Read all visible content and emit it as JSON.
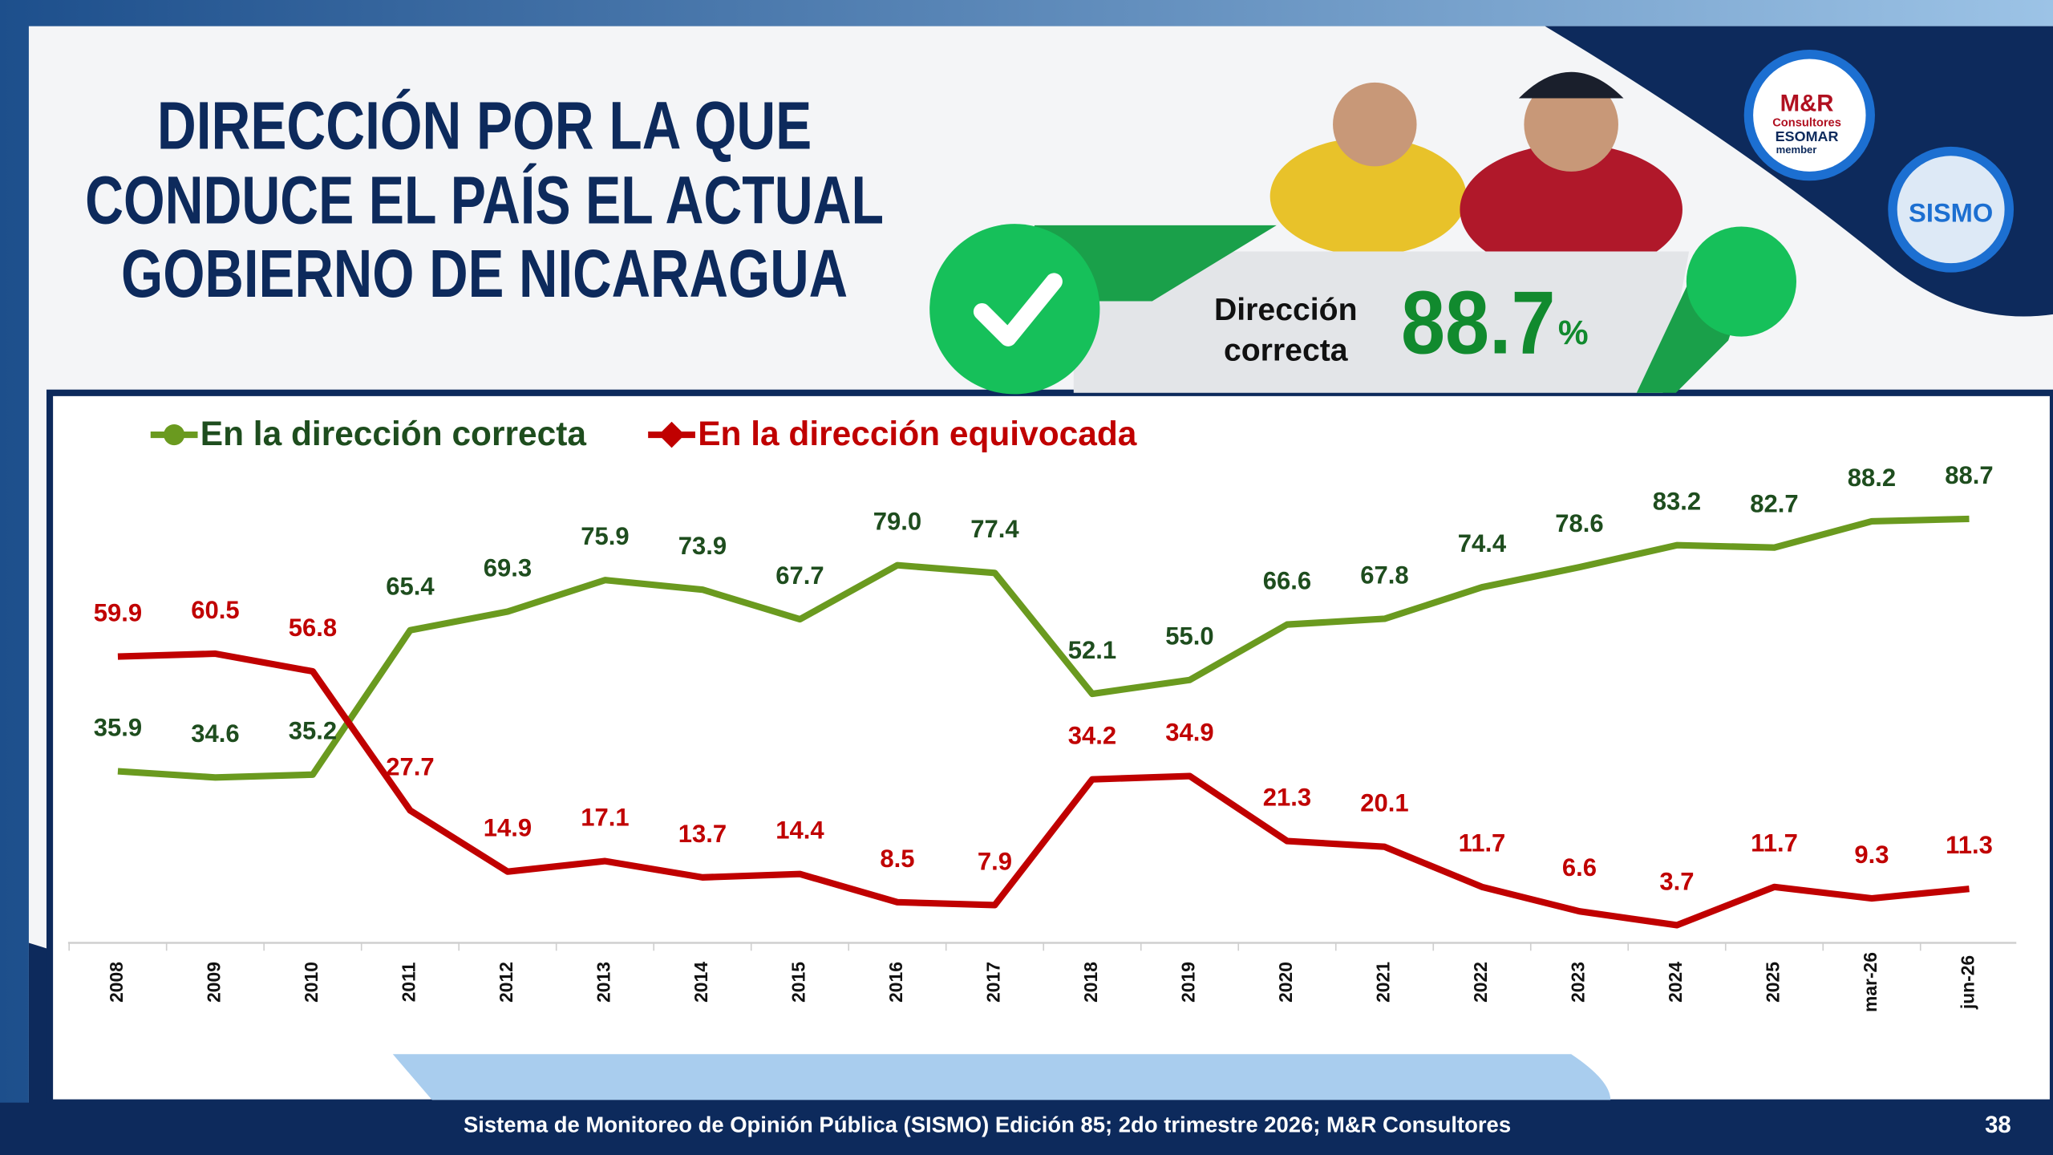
{
  "header": {
    "title_lines": [
      "DIRECCIÓN POR LA QUE",
      "CONDUCE EL PAÍS EL ACTUAL",
      "GOBIERNO DE NICARAGUA"
    ]
  },
  "badge": {
    "label_lines": [
      "Dirección",
      "correcta"
    ],
    "value": 88.7,
    "unit": "%"
  },
  "logos": {
    "mr": [
      "M&R",
      "Consultores",
      "ESOMAR",
      "member"
    ],
    "sismo": "SISMO"
  },
  "footer": {
    "text": "Sistema de Monitoreo de Opinión Pública (SISMO) Edición 85; 2do trimestre 2026; M&R Consultores",
    "page": "38"
  },
  "chart_data": {
    "type": "line",
    "categories": [
      "2008",
      "2009",
      "2010",
      "2011",
      "2012",
      "2013",
      "2014",
      "2015",
      "2016",
      "2017",
      "2018",
      "2019",
      "2020",
      "2021",
      "2022",
      "2023",
      "2024",
      "2025",
      "mar-26",
      "jun-26"
    ],
    "ylim": [
      0,
      100
    ],
    "series": [
      {
        "name": "En la dirección correcta",
        "color": "#6a9a1f",
        "label_color": "#1e4d1e",
        "values": [
          35.9,
          34.6,
          35.2,
          65.4,
          69.3,
          75.9,
          73.9,
          67.7,
          79.0,
          77.4,
          52.1,
          55.0,
          66.6,
          67.8,
          74.4,
          78.6,
          83.2,
          82.7,
          88.2,
          88.7
        ],
        "value_labels": [
          "35.9",
          "34.6",
          "35.2",
          "65.4",
          "69.3",
          "75.9",
          "73.9",
          "67.7",
          "79.0",
          "77.4",
          "52.1",
          "55.0",
          "66.6",
          "67.8",
          "74.4",
          "78.6",
          "83.2",
          "82.7",
          "88.2",
          "88.7"
        ]
      },
      {
        "name": "En la dirección equivocada",
        "color": "#c00000",
        "label_color": "#c00000",
        "values": [
          59.9,
          60.5,
          56.8,
          27.7,
          14.9,
          17.1,
          13.7,
          14.4,
          8.5,
          7.9,
          34.2,
          34.9,
          21.3,
          20.1,
          11.7,
          6.6,
          3.7,
          11.7,
          9.3,
          11.3
        ],
        "value_labels": [
          "59.9",
          "60.5",
          "56.8",
          "27.7",
          "14.9",
          "17.1",
          "13.7",
          "14.4",
          "8.5",
          "7.9",
          "34.2",
          "34.9",
          "21.3",
          "20.1",
          "11.7",
          "6.6",
          "3.7",
          "11.7",
          "9.3",
          "11.3"
        ]
      }
    ]
  }
}
